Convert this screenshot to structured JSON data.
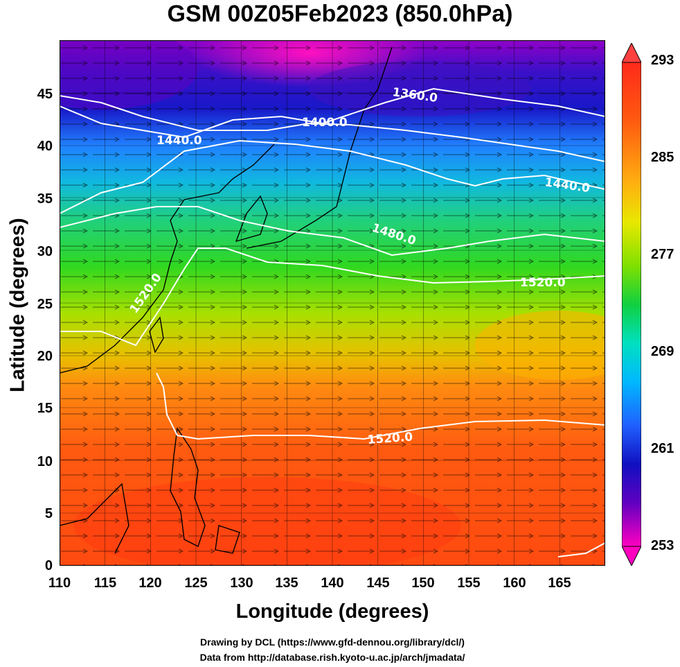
{
  "title": "GSM 00Z05Feb2023 (850.0hPa)",
  "x_axis": {
    "label": "Longitude (degrees)",
    "ticks": [
      "110",
      "115",
      "120",
      "125",
      "130",
      "135",
      "140",
      "145",
      "150",
      "155",
      "160",
      "165"
    ]
  },
  "y_axis": {
    "label": "Latitude  (degrees)",
    "ticks": [
      "0",
      "5",
      "10",
      "15",
      "20",
      "25",
      "30",
      "35",
      "40",
      "45"
    ]
  },
  "colorbar": {
    "ticks": [
      "293",
      "285",
      "277",
      "269",
      "261",
      "253"
    ],
    "colors": [
      "#ff2a1a",
      "#ff6a10",
      "#ffb010",
      "#e8e800",
      "#80e000",
      "#10d040",
      "#00e0c0",
      "#00b8ff",
      "#2060ff",
      "#1010c0",
      "#6000c0",
      "#c000d0",
      "#ff00c0"
    ]
  },
  "contour_labels": [
    "1360.0",
    "1400.0",
    "1440.0",
    "1440.0",
    "1480.0",
    "1520.0",
    "1520.0",
    "1520.0"
  ],
  "credits": {
    "line1": "Drawing by DCL (https://www.gfd-dennou.org/library/dcl/)",
    "line2": "Data from http://database.rish.kyoto-u.ac.jp/arch/jmadata/"
  },
  "map_data": {
    "lon_range": [
      110,
      170
    ],
    "lat_range": [
      0,
      50
    ],
    "field": "temperature (K) with geopotential height contours and wind streamlines",
    "temp_range": [
      253,
      293
    ]
  }
}
